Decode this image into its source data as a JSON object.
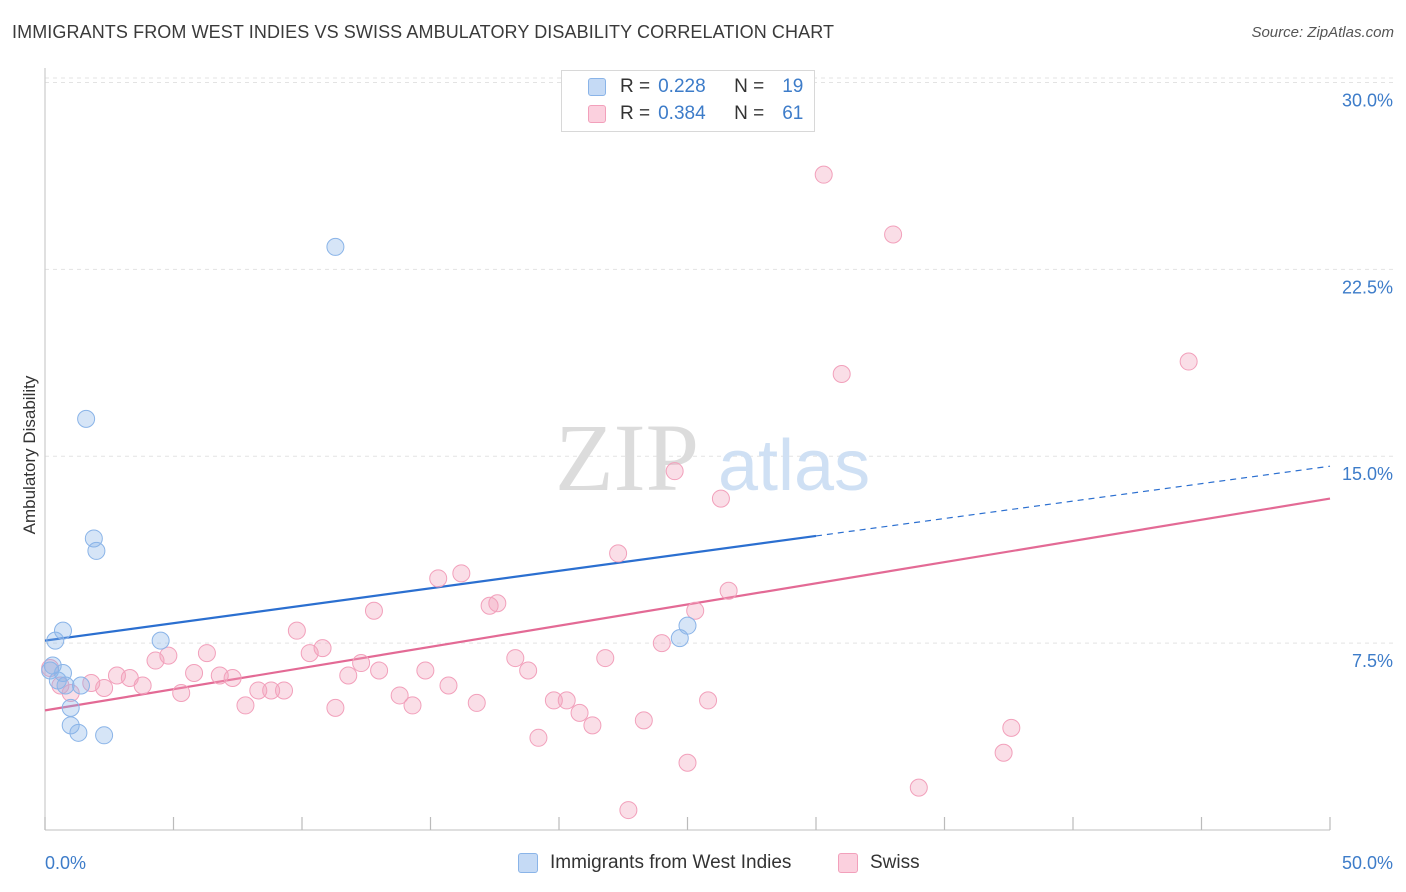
{
  "header": {
    "title": "IMMIGRANTS FROM WEST INDIES VS SWISS AMBULATORY DISABILITY CORRELATION CHART",
    "source": "Source: ZipAtlas.com"
  },
  "watermark": {
    "zip": "ZIP",
    "atlas": "atlas"
  },
  "legend": {
    "r_label": "R =",
    "n_label": "N =",
    "rows": [
      {
        "r": "0.228",
        "n": "19",
        "color": "#8ab4e8"
      },
      {
        "r": "0.384",
        "n": "61",
        "color": "#f2a0bb"
      }
    ]
  },
  "bottom_legend": {
    "items": [
      {
        "label": "Immigrants from West Indies",
        "color": "#8ab4e8"
      },
      {
        "label": "Swiss",
        "color": "#f2a0bb"
      }
    ]
  },
  "colors": {
    "blue": "#3d7cc9",
    "blue_line": "#2b6fd0",
    "pink_line": "#e36a95",
    "grid": "#e3e3e3",
    "axis_text": "#3d7cc9"
  },
  "chart_data": {
    "type": "scatter",
    "title": "IMMIGRANTS FROM WEST INDIES VS SWISS AMBULATORY DISABILITY CORRELATION CHART",
    "xlabel": "",
    "ylabel": "Ambulatory Disability",
    "xlim": [
      0,
      50
    ],
    "ylim": [
      0,
      30.5
    ],
    "x_tick_labels": [
      "0.0%",
      "50.0%"
    ],
    "y_ticks": [
      7.5,
      15.0,
      22.5,
      30.0
    ],
    "y_tick_labels": [
      "7.5%",
      "15.0%",
      "22.5%",
      "30.0%"
    ],
    "grid": true,
    "legend_position": "top-center",
    "series": [
      {
        "name": "Immigrants from West Indies",
        "color": "#8ab4e8",
        "points": [
          [
            0.2,
            6.4
          ],
          [
            0.3,
            6.6
          ],
          [
            0.4,
            7.6
          ],
          [
            0.5,
            6.0
          ],
          [
            0.7,
            8.0
          ],
          [
            0.7,
            6.3
          ],
          [
            0.8,
            5.8
          ],
          [
            1.0,
            4.2
          ],
          [
            1.0,
            4.9
          ],
          [
            1.3,
            3.9
          ],
          [
            1.4,
            5.8
          ],
          [
            1.6,
            16.5
          ],
          [
            1.9,
            11.7
          ],
          [
            2.0,
            11.2
          ],
          [
            2.3,
            3.8
          ],
          [
            4.5,
            7.6
          ],
          [
            11.3,
            23.4
          ],
          [
            24.7,
            7.7
          ],
          [
            25.0,
            8.2
          ]
        ],
        "trend": {
          "x0": 0,
          "y0": 7.6,
          "x1": 30,
          "y1": 11.8,
          "dashed_to_x": 50,
          "dashed_to_y": 14.6
        }
      },
      {
        "name": "Swiss",
        "color": "#f2a0bb",
        "points": [
          [
            0.2,
            6.5
          ],
          [
            0.6,
            5.8
          ],
          [
            1.0,
            5.5
          ],
          [
            1.8,
            5.9
          ],
          [
            2.3,
            5.7
          ],
          [
            2.8,
            6.2
          ],
          [
            3.3,
            6.1
          ],
          [
            3.8,
            5.8
          ],
          [
            4.3,
            6.8
          ],
          [
            4.8,
            7.0
          ],
          [
            5.3,
            5.5
          ],
          [
            5.8,
            6.3
          ],
          [
            6.3,
            7.1
          ],
          [
            6.8,
            6.2
          ],
          [
            7.3,
            6.1
          ],
          [
            7.8,
            5.0
          ],
          [
            8.3,
            5.6
          ],
          [
            8.8,
            5.6
          ],
          [
            9.3,
            5.6
          ],
          [
            9.8,
            8.0
          ],
          [
            10.3,
            7.1
          ],
          [
            10.8,
            7.3
          ],
          [
            11.3,
            4.9
          ],
          [
            11.8,
            6.2
          ],
          [
            12.3,
            6.7
          ],
          [
            12.8,
            8.8
          ],
          [
            13.0,
            6.4
          ],
          [
            13.8,
            5.4
          ],
          [
            14.3,
            5.0
          ],
          [
            14.8,
            6.4
          ],
          [
            15.3,
            10.1
          ],
          [
            15.7,
            5.8
          ],
          [
            16.2,
            10.3
          ],
          [
            16.8,
            5.1
          ],
          [
            17.3,
            9.0
          ],
          [
            17.6,
            9.1
          ],
          [
            18.3,
            6.9
          ],
          [
            18.8,
            6.4
          ],
          [
            19.2,
            3.7
          ],
          [
            19.8,
            5.2
          ],
          [
            20.3,
            5.2
          ],
          [
            20.8,
            4.7
          ],
          [
            21.3,
            4.2
          ],
          [
            21.8,
            6.9
          ],
          [
            22.3,
            11.1
          ],
          [
            22.7,
            0.8
          ],
          [
            23.3,
            4.4
          ],
          [
            24.0,
            7.5
          ],
          [
            24.5,
            14.4
          ],
          [
            25.0,
            2.7
          ],
          [
            25.3,
            8.8
          ],
          [
            25.8,
            5.2
          ],
          [
            26.3,
            13.3
          ],
          [
            26.6,
            9.6
          ],
          [
            30.3,
            26.3
          ],
          [
            31.0,
            18.3
          ],
          [
            33.0,
            23.9
          ],
          [
            34.0,
            1.7
          ],
          [
            37.3,
            3.1
          ],
          [
            37.6,
            4.1
          ],
          [
            44.5,
            18.8
          ]
        ],
        "trend": {
          "x0": 0,
          "y0": 4.8,
          "x1": 50,
          "y1": 13.3
        }
      }
    ]
  }
}
